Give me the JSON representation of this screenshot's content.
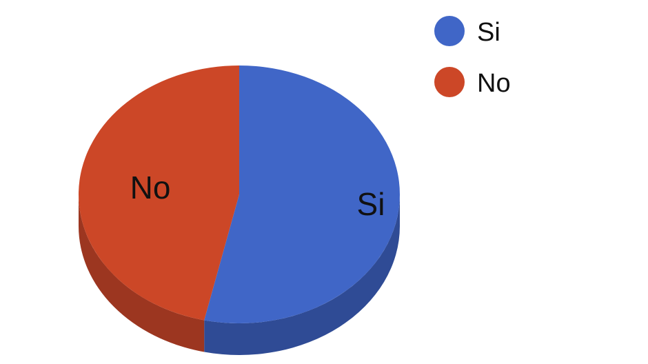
{
  "chart_data": {
    "type": "pie",
    "style": "3d",
    "title": "",
    "slices": [
      {
        "label": "Si",
        "value": 53.5,
        "color": "#4066c7",
        "side_color": "#2f4b95"
      },
      {
        "label": "No",
        "value": 46.5,
        "color": "#cc4727",
        "side_color": "#9c3620"
      }
    ],
    "legend": {
      "position": "top-right",
      "entries": [
        "Si",
        "No"
      ]
    },
    "slice_labels": [
      "Si",
      "No"
    ]
  }
}
